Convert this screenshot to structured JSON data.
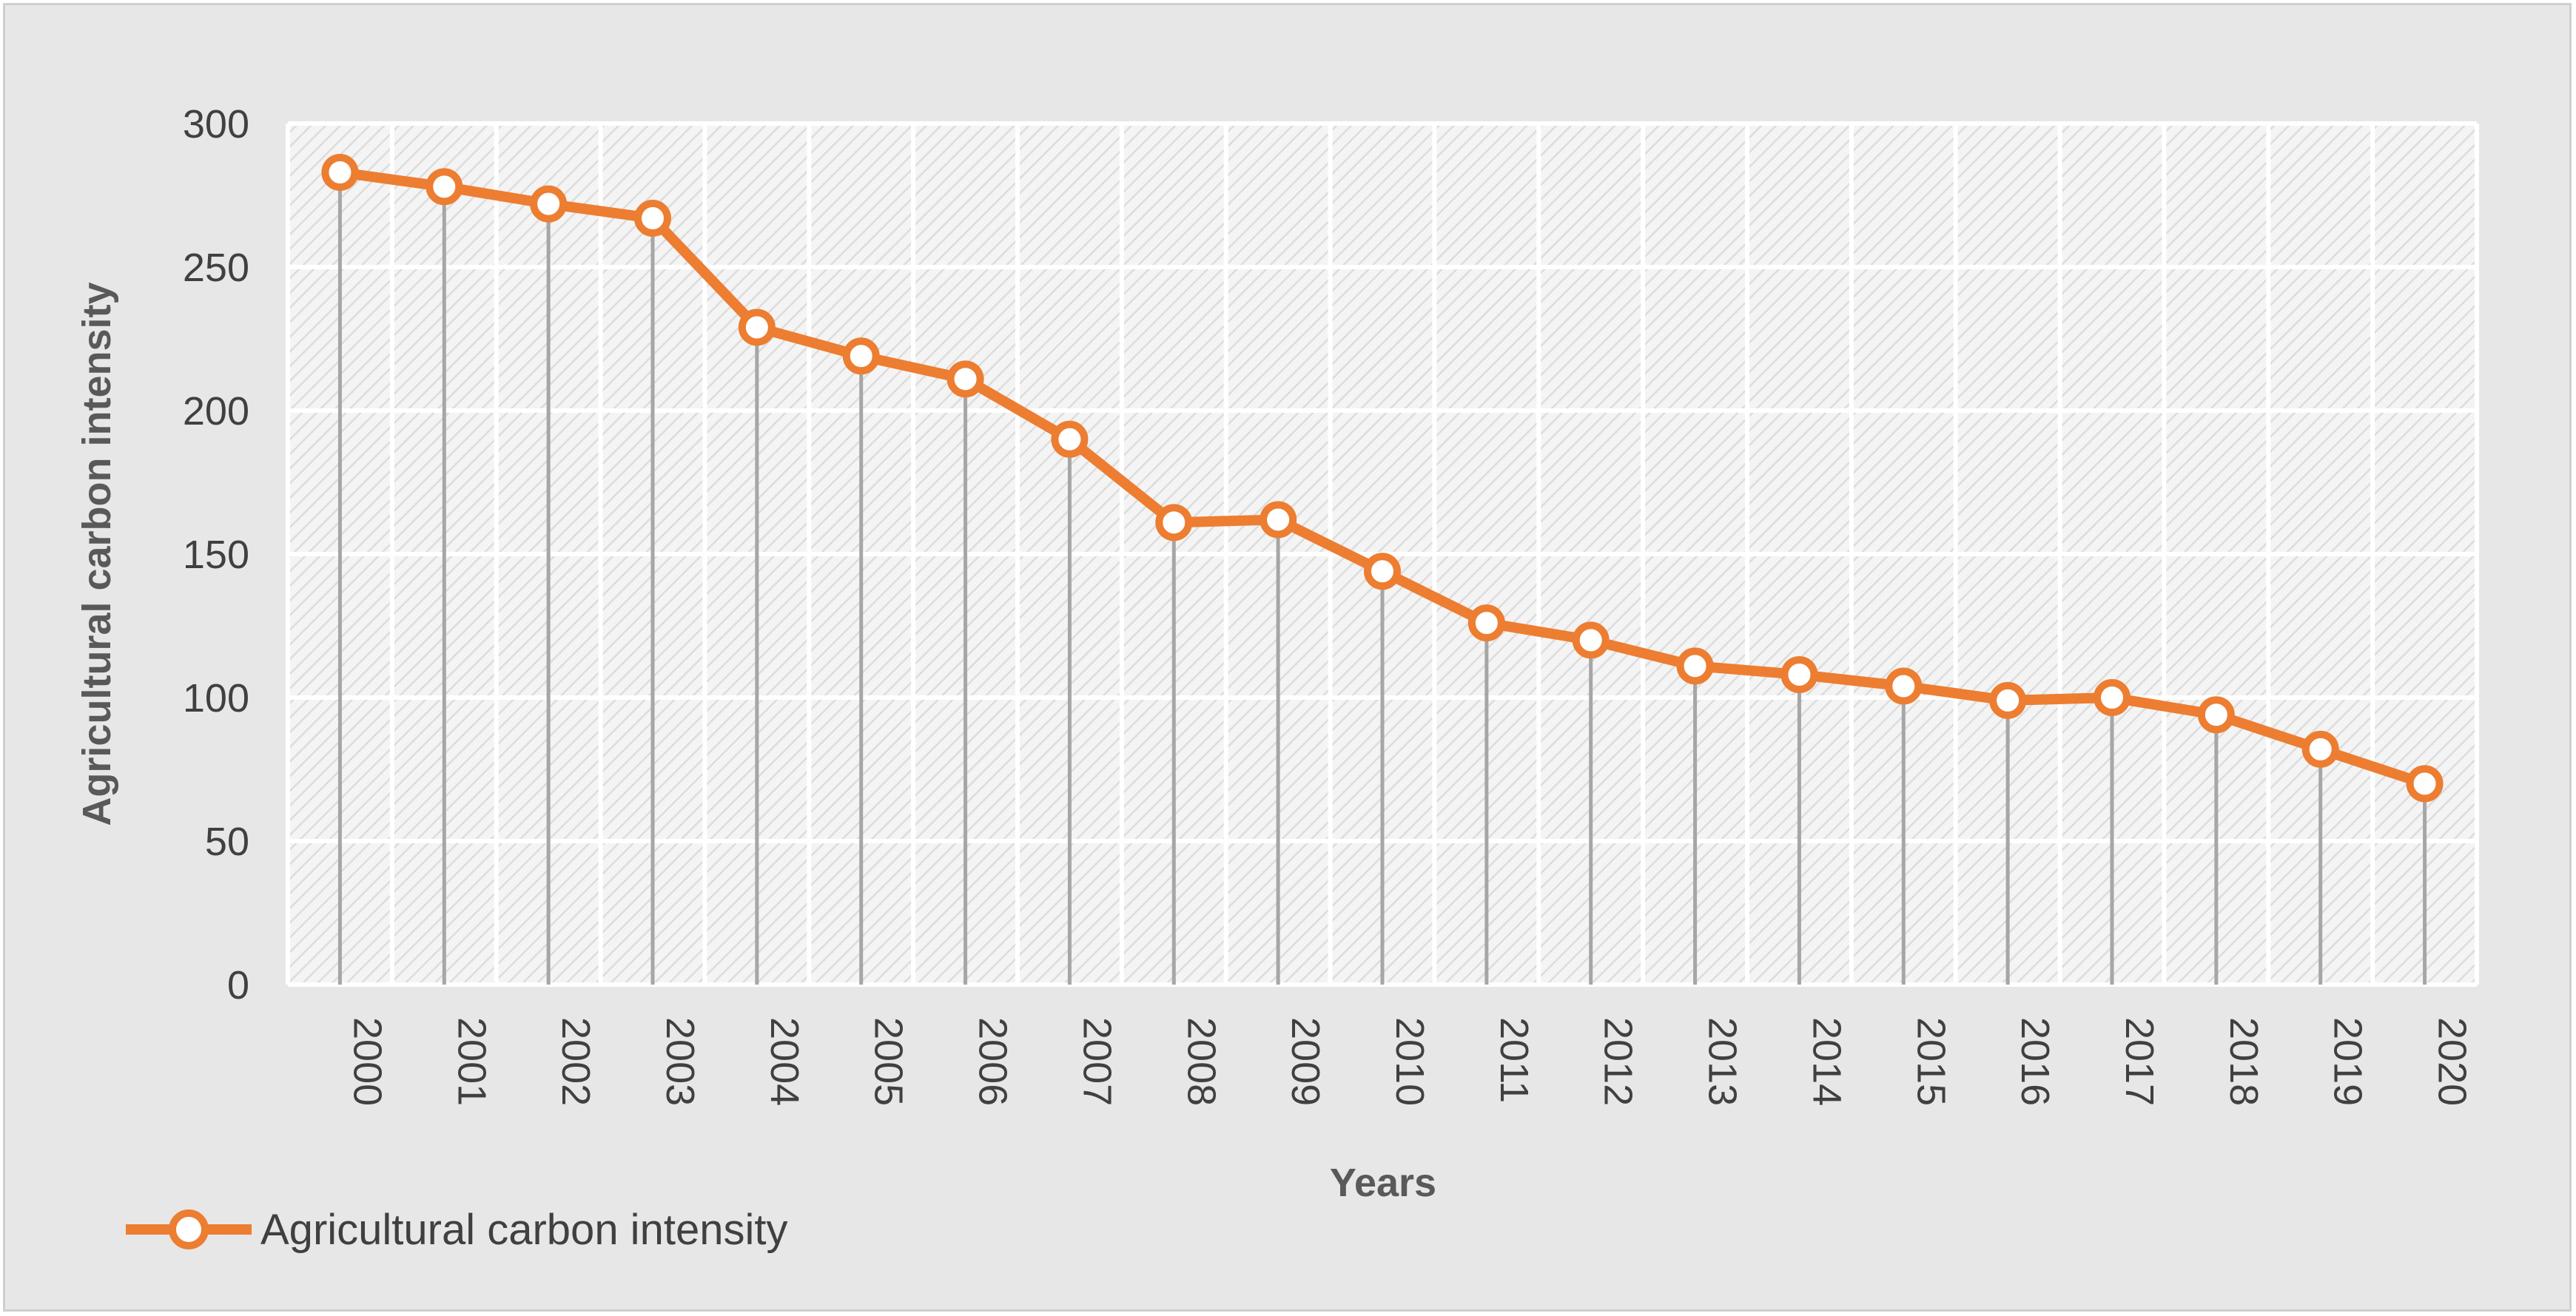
{
  "chart_data": {
    "type": "line",
    "title": "",
    "xlabel": "Years",
    "ylabel": "Agricultural carbon intensity",
    "categories": [
      "2000",
      "2001",
      "2002",
      "2003",
      "2004",
      "2005",
      "2006",
      "2007",
      "2008",
      "2009",
      "2010",
      "2011",
      "2012",
      "2013",
      "2014",
      "2015",
      "2016",
      "2017",
      "2018",
      "2019",
      "2020"
    ],
    "series": [
      {
        "name": "Agricultural carbon intensity",
        "values": [
          283,
          278,
          272,
          267,
          229,
          219,
          211,
          190,
          161,
          162,
          144,
          126,
          120,
          111,
          108,
          104,
          99,
          100,
          94,
          82,
          70
        ]
      }
    ],
    "ylim": [
      0,
      300
    ],
    "yticks": [
      "0",
      "50",
      "100",
      "150",
      "200",
      "250",
      "300"
    ],
    "grid": true,
    "drop_lines": true,
    "legend": "bottom-left",
    "colors": {
      "line": "#ed7d31",
      "marker_fill": "#ffffff",
      "drop_line": "#a6a6a6",
      "plot_bg": "#f2f2f2",
      "grid": "#ffffff"
    }
  }
}
